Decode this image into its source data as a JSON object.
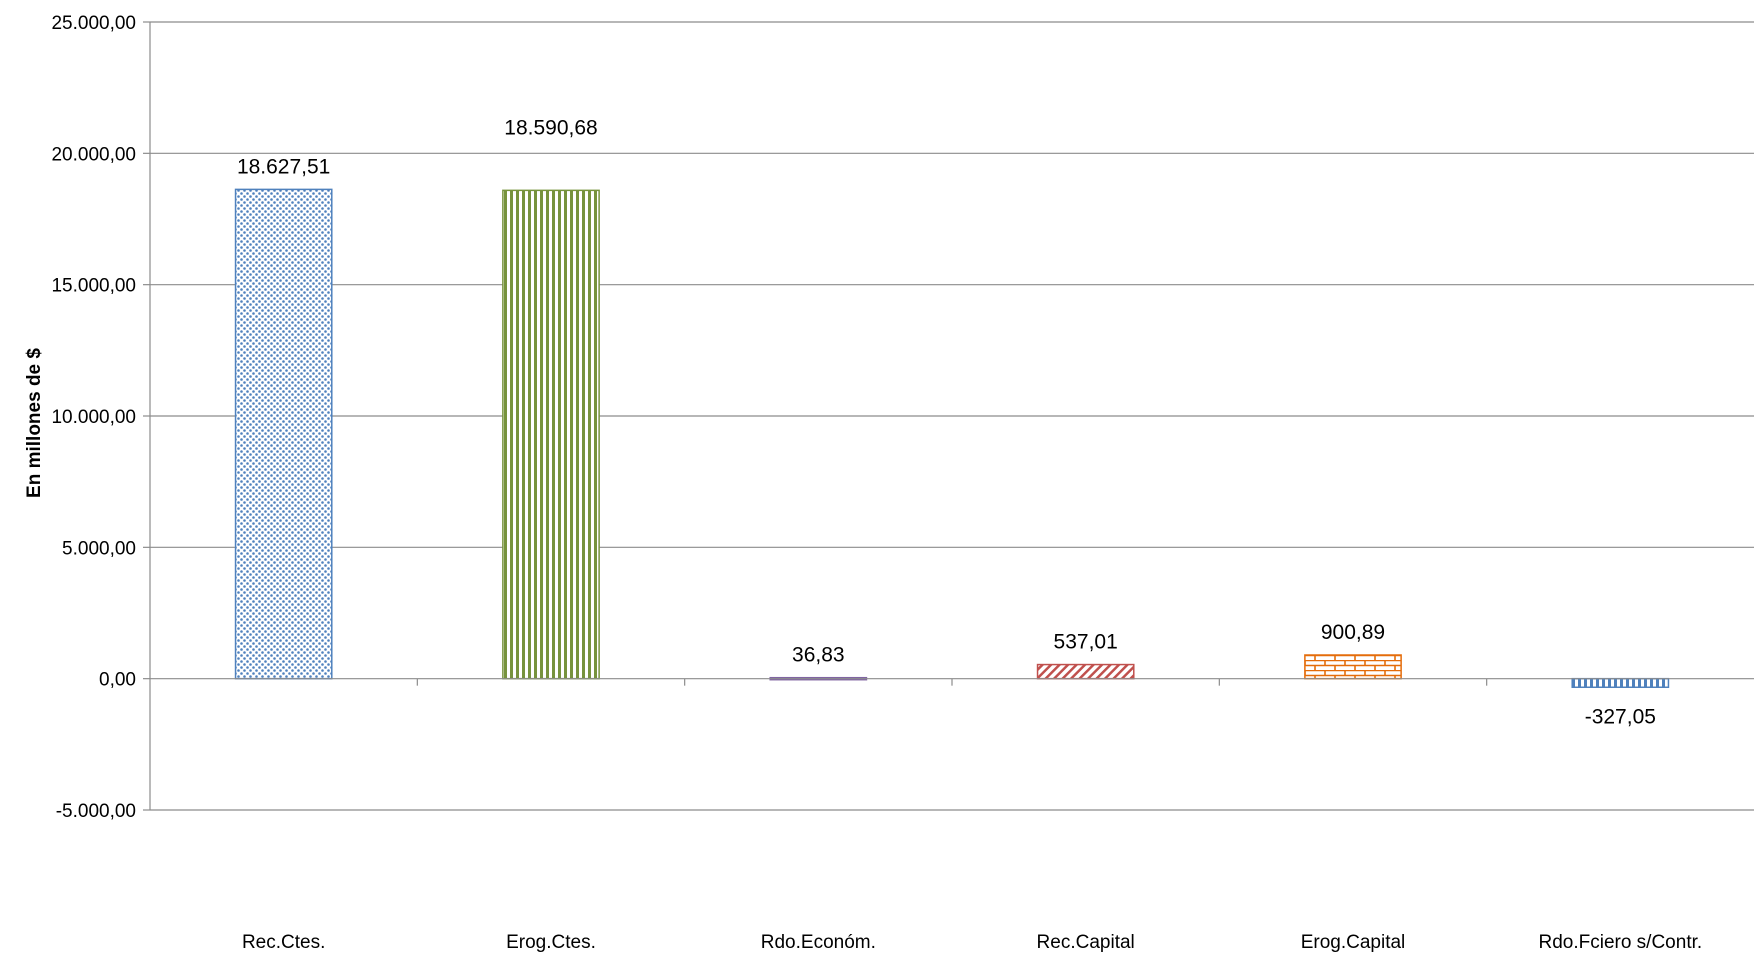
{
  "chart_data": {
    "type": "bar",
    "title": "",
    "xlabel": "",
    "ylabel": "En millones de $",
    "ylim": [
      -5000,
      25000
    ],
    "yticks": [
      -5000,
      0,
      5000,
      10000,
      15000,
      20000,
      25000
    ],
    "ytick_labels": [
      "-5.000,00",
      "0,00",
      "5.000,00",
      "10.000,00",
      "15.000,00",
      "20.000,00",
      "25.000,00"
    ],
    "grid": true,
    "legend": "none",
    "categories": [
      "Rec.Ctes.",
      "Erog.Ctes.",
      "Rdo.Económ.",
      "Rec.Capital",
      "Erog.Capital",
      "Rdo.Fciero s/Contr."
    ],
    "values": [
      18627.51,
      18590.68,
      36.83,
      537.01,
      900.89,
      -327.05
    ],
    "value_labels": [
      "18.627,51",
      "18.590,68",
      "36,83",
      "537,01",
      "900,89",
      "-327,05"
    ],
    "bar_styles": [
      {
        "pattern": "dots",
        "color": "#4f81bd"
      },
      {
        "pattern": "vertical-stripes",
        "color": "#77933c"
      },
      {
        "pattern": "solid",
        "color": "#8064a2"
      },
      {
        "pattern": "diagonal-stripes",
        "color": "#c0504d"
      },
      {
        "pattern": "bricks",
        "color": "#e46c0a"
      },
      {
        "pattern": "vertical-stripes",
        "color": "#4f81bd"
      }
    ]
  }
}
